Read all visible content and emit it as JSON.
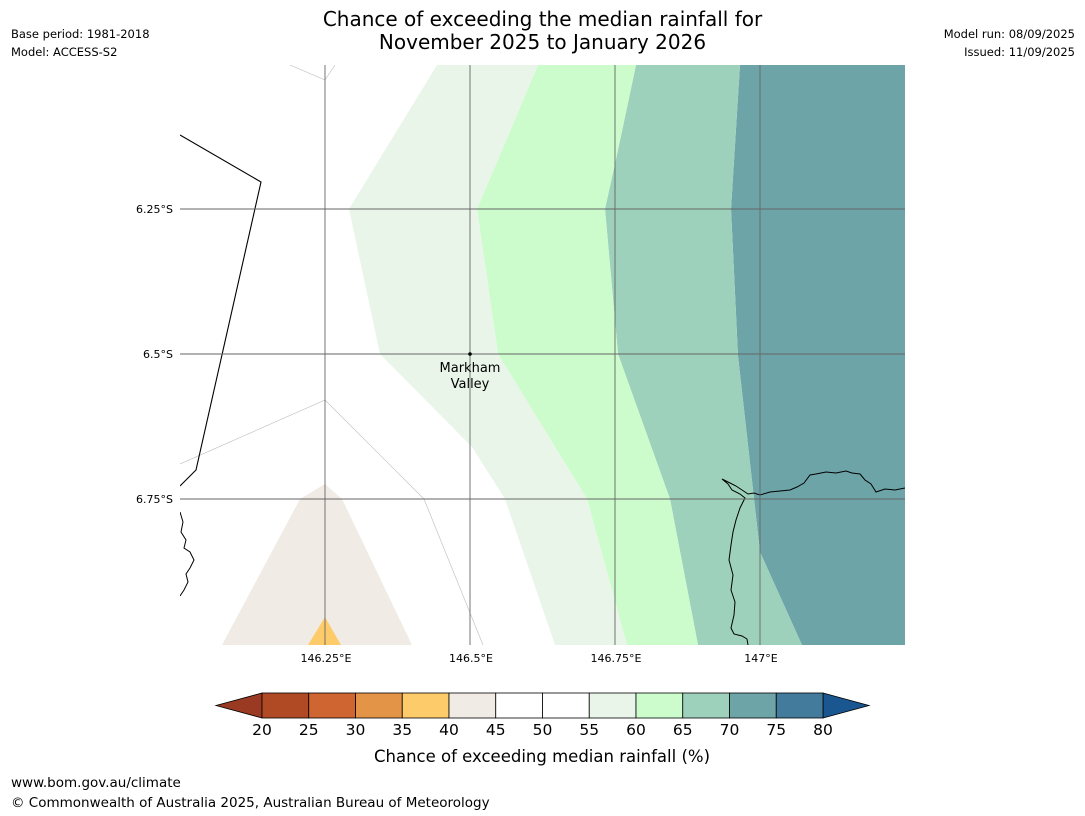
{
  "title": {
    "line1": "Chance of exceeding the median rainfall for",
    "line2": "November 2025 to January 2026"
  },
  "meta": {
    "base_period": "Base period: 1981-2018",
    "model": "Model: ACCESS-S2",
    "model_run": "Model run: 08/09/2025",
    "issued": "Issued: 11/09/2025"
  },
  "map": {
    "lon_labels": [
      "146.25°E",
      "146.5°E",
      "146.75°E",
      "147°E"
    ],
    "lat_labels": [
      "6.25°S",
      "6.5°S",
      "6.75°S"
    ],
    "place": {
      "name_line1": "Markham",
      "name_line2": "Valley"
    },
    "zone_colors": {
      "35-40": "#fecb6b",
      "40-45": "#f0ebe4",
      "55-60": "#eaf5ea",
      "60-65": "#ccfccc",
      "65-70": "#9ed1bb",
      "70-75": "#6da4a8"
    }
  },
  "colorbar": {
    "label": "Chance of exceeding median rainfall (%)",
    "ticks": [
      "20",
      "25",
      "30",
      "35",
      "40",
      "45",
      "50",
      "55",
      "60",
      "65",
      "70",
      "75",
      "80"
    ],
    "bin_colors": [
      "#b04a25",
      "#cf6530",
      "#e39446",
      "#fecb6b",
      "#f0ebe4",
      "#ffffff",
      "#ffffff",
      "#eaf5ea",
      "#ccfccc",
      "#9ed1bb",
      "#6da4a8",
      "#437b9c"
    ],
    "under_color": "#9b3a22",
    "over_color": "#1a5690"
  },
  "footer": {
    "url": "www.bom.gov.au/climate",
    "copyright": "© Commonwealth of Australia 2025, Australian Bureau of Meteorology"
  }
}
